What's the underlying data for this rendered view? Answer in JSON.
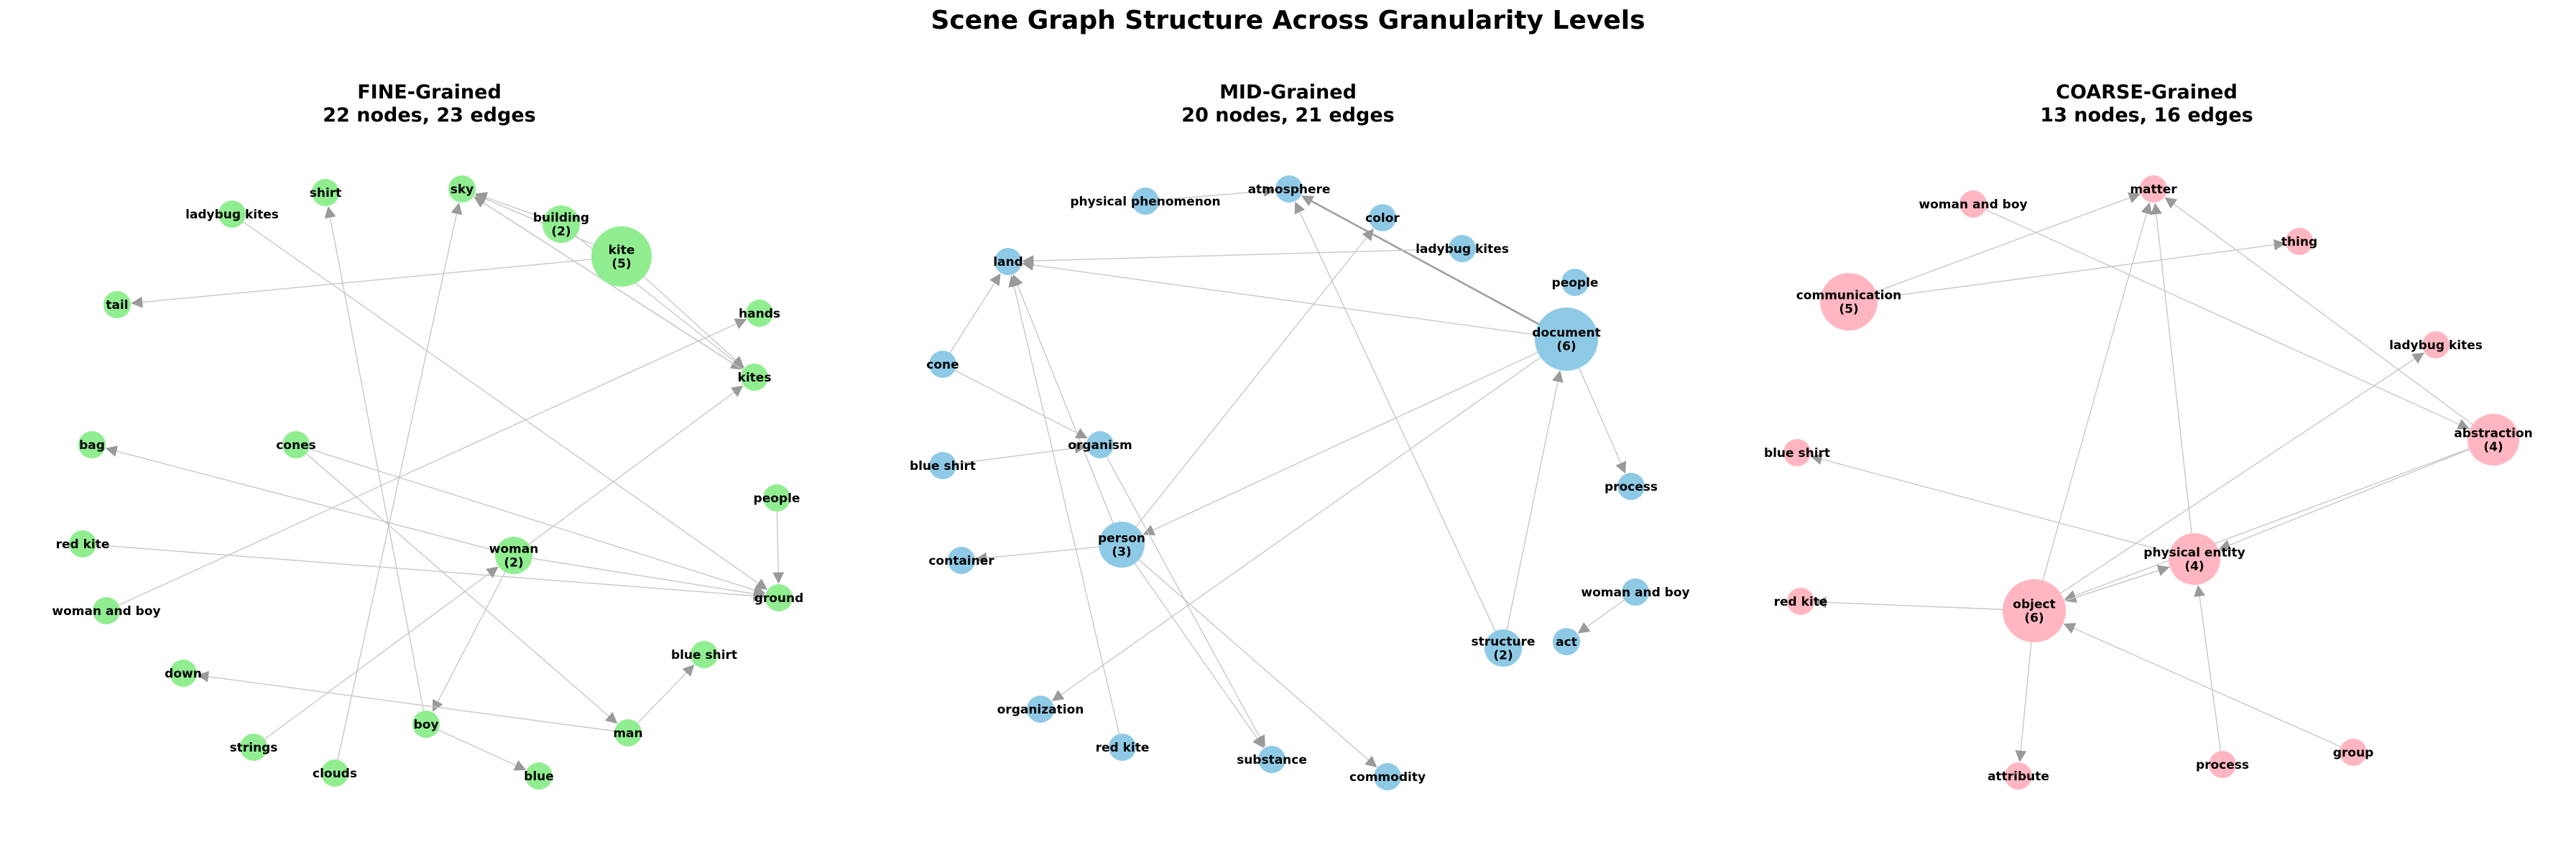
{
  "title": "Scene Graph Structure Across Granularity Levels",
  "panels": [
    {
      "id": "fine",
      "title": "FINE-Grained",
      "subtitle": "22 nodes, 23 edges",
      "color": "#90ee90",
      "nodes": [
        {
          "id": "sky",
          "label": "sky"
        },
        {
          "id": "shirt",
          "label": "shirt"
        },
        {
          "id": "ladybug_kites",
          "label": "ladybug kites"
        },
        {
          "id": "building",
          "label": "building\n(2)"
        },
        {
          "id": "kite",
          "label": "kite\n(5)"
        },
        {
          "id": "tail",
          "label": "tail"
        },
        {
          "id": "hands",
          "label": "hands"
        },
        {
          "id": "kites",
          "label": "kites"
        },
        {
          "id": "bag",
          "label": "bag"
        },
        {
          "id": "cones",
          "label": "cones"
        },
        {
          "id": "people",
          "label": "people"
        },
        {
          "id": "red_kite",
          "label": "red kite"
        },
        {
          "id": "woman",
          "label": "woman\n(2)"
        },
        {
          "id": "ground",
          "label": "ground"
        },
        {
          "id": "woman_and_boy",
          "label": "woman and boy"
        },
        {
          "id": "blue_shirt",
          "label": "blue shirt"
        },
        {
          "id": "down",
          "label": "down"
        },
        {
          "id": "boy",
          "label": "boy"
        },
        {
          "id": "man",
          "label": "man"
        },
        {
          "id": "strings",
          "label": "strings"
        },
        {
          "id": "clouds",
          "label": "clouds"
        },
        {
          "id": "blue",
          "label": "blue"
        }
      ],
      "edges": [
        [
          "kite",
          "sky"
        ],
        [
          "kite",
          "kites"
        ],
        [
          "kite",
          "tail"
        ],
        [
          "building",
          "sky"
        ],
        [
          "building",
          "kites"
        ],
        [
          "woman",
          "kites"
        ],
        [
          "woman",
          "boy"
        ],
        [
          "woman",
          "bag"
        ],
        [
          "woman",
          "ground"
        ],
        [
          "cones",
          "ground"
        ],
        [
          "cones",
          "man"
        ],
        [
          "people",
          "ground"
        ],
        [
          "red_kite",
          "ground"
        ],
        [
          "woman_and_boy",
          "hands"
        ],
        [
          "man",
          "blue_shirt"
        ],
        [
          "man",
          "down"
        ],
        [
          "boy",
          "blue"
        ],
        [
          "boy",
          "shirt"
        ],
        [
          "clouds",
          "sky"
        ],
        [
          "strings",
          "woman"
        ],
        [
          "ladybug_kites",
          "ground"
        ],
        [
          "sky",
          "kites"
        ],
        [
          "kites",
          "sky"
        ]
      ]
    },
    {
      "id": "mid",
      "title": "MID-Grained",
      "subtitle": "20 nodes, 21 edges",
      "color": "#8ecae6",
      "nodes": [
        {
          "id": "atmosphere",
          "label": "atmosphere"
        },
        {
          "id": "physical_phenomenon",
          "label": "physical phenomenon"
        },
        {
          "id": "color",
          "label": "color"
        },
        {
          "id": "ladybug_kites",
          "label": "ladybug kites"
        },
        {
          "id": "land",
          "label": "land"
        },
        {
          "id": "people",
          "label": "people"
        },
        {
          "id": "document",
          "label": "document\n(6)"
        },
        {
          "id": "cone",
          "label": "cone"
        },
        {
          "id": "organism",
          "label": "organism"
        },
        {
          "id": "blue_shirt",
          "label": "blue shirt"
        },
        {
          "id": "process",
          "label": "process"
        },
        {
          "id": "person",
          "label": "person\n(3)"
        },
        {
          "id": "container",
          "label": "container"
        },
        {
          "id": "woman_and_boy",
          "label": "woman and boy"
        },
        {
          "id": "structure",
          "label": "structure\n(2)"
        },
        {
          "id": "act",
          "label": "act"
        },
        {
          "id": "organization",
          "label": "organization"
        },
        {
          "id": "red_kite",
          "label": "red kite"
        },
        {
          "id": "substance",
          "label": "substance"
        },
        {
          "id": "commodity",
          "label": "commodity"
        }
      ],
      "edges": [
        [
          "document",
          "atmosphere"
        ],
        [
          "document",
          "land"
        ],
        [
          "document",
          "process"
        ],
        [
          "document",
          "organization"
        ],
        [
          "document",
          "person"
        ],
        [
          "document",
          "atmosphere"
        ],
        [
          "structure",
          "atmosphere"
        ],
        [
          "structure",
          "document"
        ],
        [
          "person",
          "land"
        ],
        [
          "person",
          "color"
        ],
        [
          "person",
          "substance"
        ],
        [
          "person",
          "commodity"
        ],
        [
          "person",
          "container"
        ],
        [
          "cone",
          "land"
        ],
        [
          "cone",
          "organism"
        ],
        [
          "blue_shirt",
          "organism"
        ],
        [
          "red_kite",
          "land"
        ],
        [
          "organism",
          "substance"
        ],
        [
          "physical_phenomenon",
          "atmosphere"
        ],
        [
          "woman_and_boy",
          "act"
        ],
        [
          "ladybug_kites",
          "land"
        ]
      ]
    },
    {
      "id": "coarse",
      "title": "COARSE-Grained",
      "subtitle": "13 nodes, 16 edges",
      "color": "#ffb6c1",
      "nodes": [
        {
          "id": "matter",
          "label": "matter"
        },
        {
          "id": "woman_and_boy",
          "label": "woman and boy"
        },
        {
          "id": "thing",
          "label": "thing"
        },
        {
          "id": "communication",
          "label": "communication\n(5)"
        },
        {
          "id": "ladybug_kites",
          "label": "ladybug kites"
        },
        {
          "id": "blue_shirt",
          "label": "blue shirt"
        },
        {
          "id": "abstraction",
          "label": "abstraction\n(4)"
        },
        {
          "id": "physical_entity",
          "label": "physical entity\n(4)"
        },
        {
          "id": "red_kite",
          "label": "red kite"
        },
        {
          "id": "object",
          "label": "object\n(6)"
        },
        {
          "id": "group",
          "label": "group"
        },
        {
          "id": "process",
          "label": "process"
        },
        {
          "id": "attribute",
          "label": "attribute"
        }
      ],
      "edges": [
        [
          "communication",
          "matter"
        ],
        [
          "communication",
          "thing"
        ],
        [
          "abstraction",
          "matter"
        ],
        [
          "abstraction",
          "object"
        ],
        [
          "abstraction",
          "physical_entity"
        ],
        [
          "physical_entity",
          "matter"
        ],
        [
          "physical_entity",
          "blue_shirt"
        ],
        [
          "physical_entity",
          "object"
        ],
        [
          "object",
          "matter"
        ],
        [
          "object",
          "red_kite"
        ],
        [
          "object",
          "attribute"
        ],
        [
          "object",
          "ladybug_kites"
        ],
        [
          "object",
          "physical_entity"
        ],
        [
          "process",
          "physical_entity"
        ],
        [
          "group",
          "object"
        ],
        [
          "woman_and_boy",
          "abstraction"
        ]
      ]
    }
  ]
}
